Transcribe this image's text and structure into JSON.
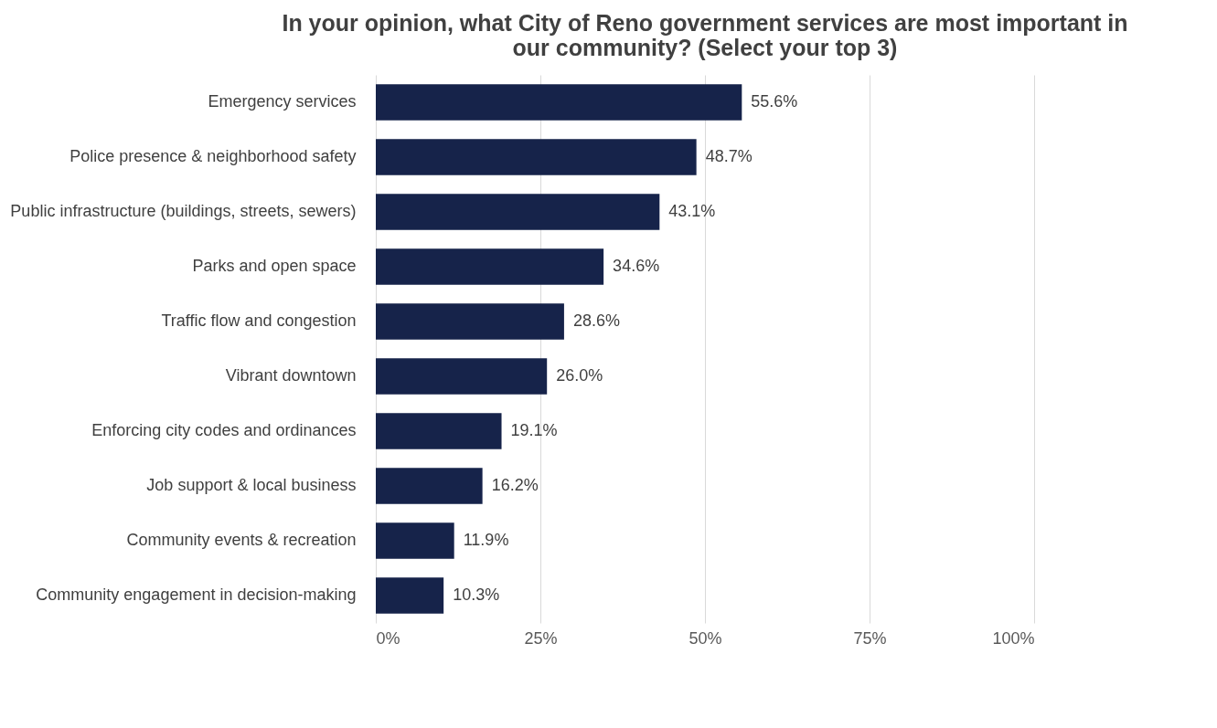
{
  "chart_data": {
    "type": "bar",
    "orientation": "horizontal",
    "title": "In your opinion, what City of Reno government services are most important in our community? (Select your top 3)",
    "categories": [
      "Emergency services",
      "Police presence & neighborhood safety",
      "Public infrastructure (buildings, streets, sewers)",
      "Parks and open space",
      "Traffic flow and congestion",
      "Vibrant downtown",
      "Enforcing city codes and ordinances",
      "Job support & local business",
      "Community events & recreation",
      "Community engagement in decision-making"
    ],
    "values": [
      55.6,
      48.7,
      43.1,
      34.6,
      28.6,
      26.0,
      19.1,
      16.2,
      11.9,
      10.3
    ],
    "value_labels": [
      "55.6%",
      "48.7%",
      "43.1%",
      "34.6%",
      "28.6%",
      "26.0%",
      "19.1%",
      "16.2%",
      "11.9%",
      "10.3%"
    ],
    "color": "#16234a",
    "xlim": [
      0,
      100
    ],
    "xticks": [
      {
        "value": 0,
        "label": "0%"
      },
      {
        "value": 25,
        "label": "25%"
      },
      {
        "value": 50,
        "label": "50%"
      },
      {
        "value": 75,
        "label": "75%"
      },
      {
        "value": 100,
        "label": "100%"
      }
    ],
    "grid": "x"
  }
}
